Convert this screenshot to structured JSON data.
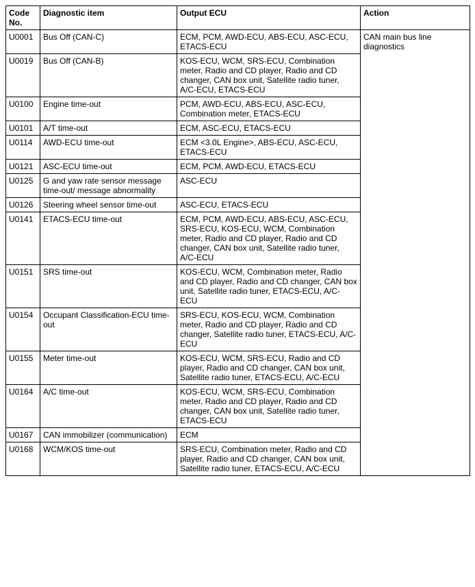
{
  "table": {
    "columns": [
      "Code No.",
      "Diagnostic item",
      "Output ECU",
      "Action"
    ],
    "action_merged": "CAN main bus line diagnostics",
    "rows": [
      {
        "code": "U0001",
        "diagnostic": "Bus Off (CAN-C)",
        "ecu": "ECM, PCM, AWD-ECU, ABS-ECU, ASC-ECU, ETACS-ECU"
      },
      {
        "code": "U0019",
        "diagnostic": "Bus Off (CAN-B)",
        "ecu": "KOS-ECU, WCM, SRS-ECU, Combination meter, Radio and CD player, Radio and CD changer, CAN box unit, Satellite radio tuner, A/C-ECU, ETACS-ECU"
      },
      {
        "code": "U0100",
        "diagnostic": "Engine time-out",
        "ecu": "PCM, AWD-ECU, ABS-ECU, ASC-ECU, Combination meter, ETACS-ECU"
      },
      {
        "code": "U0101",
        "diagnostic": "A/T time-out",
        "ecu": "ECM, ASC-ECU, ETACS-ECU"
      },
      {
        "code": "U0114",
        "diagnostic": "AWD-ECU time-out",
        "ecu": "ECM <3.0L Engine>, ABS-ECU, ASC-ECU, ETACS-ECU"
      },
      {
        "code": "U0121",
        "diagnostic": "ASC-ECU time-out",
        "ecu": "ECM, PCM, AWD-ECU, ETACS-ECU"
      },
      {
        "code": "U0125",
        "diagnostic": "G and yaw rate sensor message time-out/ message abnormality",
        "ecu": "ASC-ECU"
      },
      {
        "code": "U0126",
        "diagnostic": "Steering wheel sensor time-out",
        "ecu": "ASC-ECU, ETACS-ECU"
      },
      {
        "code": "U0141",
        "diagnostic": "ETACS-ECU time-out",
        "ecu": "ECM, PCM, AWD-ECU, ABS-ECU, ASC-ECU, SRS-ECU, KOS-ECU, WCM, Combination meter, Radio and CD player, Radio and CD changer, CAN box unit, Satellite radio tuner, A/C-ECU"
      },
      {
        "code": "U0151",
        "diagnostic": "SRS time-out",
        "ecu": "KOS-ECU, WCM, Combination meter, Radio and CD player, Radio and CD changer, CAN box unit, Satellite radio tuner, ETACS-ECU, A/C-ECU"
      },
      {
        "code": "U0154",
        "diagnostic": "Occupant Classification-ECU time-out",
        "ecu": "SRS-ECU, KOS-ECU, WCM, Combination meter, Radio and CD player, Radio and CD changer, Satellite radio tuner, ETACS-ECU, A/C-ECU"
      },
      {
        "code": "U0155",
        "diagnostic": "Meter time-out",
        "ecu": "KOS-ECU, WCM, SRS-ECU, Radio and CD player, Radio and CD changer, CAN box unit, Satellite radio tuner, ETACS-ECU, A/C-ECU"
      },
      {
        "code": "U0164",
        "diagnostic": "A/C time-out",
        "ecu": "KOS-ECU, WCM, SRS-ECU, Combination meter, Radio and CD player, Radio and CD changer, CAN box unit, Satellite radio tuner, ETACS-ECU"
      },
      {
        "code": "U0167",
        "diagnostic": "CAN immobilizer (communication)",
        "ecu": "ECM"
      },
      {
        "code": "U0168",
        "diagnostic": "WCM/KOS time-out",
        "ecu": "SRS-ECU, Combination meter, Radio and CD player, Radio and CD changer, CAN box unit, Satellite radio tuner, ETACS-ECU, A/C-ECU"
      }
    ]
  }
}
